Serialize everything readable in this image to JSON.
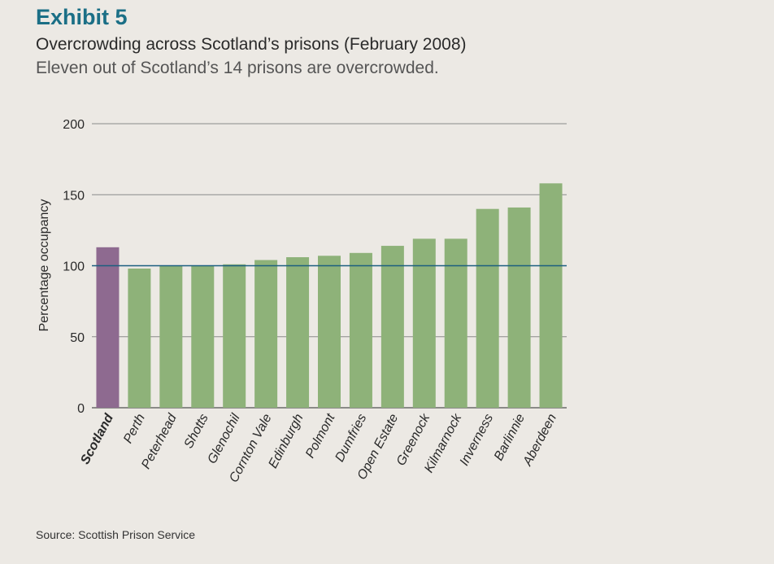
{
  "header": {
    "exhibit": "Exhibit 5",
    "title": "Overcrowding across Scotland’s prisons (February 2008)",
    "subtitle": "Eleven out of Scotland’s 14 prisons are overcrowded."
  },
  "footer": {
    "source": "Source: Scottish Prison Service"
  },
  "chart_data": {
    "type": "bar",
    "categories": [
      "Scotland",
      "Perth",
      "Peterhead",
      "Shotts",
      "Glenochil",
      "Cornton Vale",
      "Edinburgh",
      "Polmont",
      "Dumfries",
      "Open Estate",
      "Greenock",
      "Kilmarnock",
      "Inverness",
      "Barlinnie",
      "Aberdeen"
    ],
    "values": [
      113,
      98,
      100,
      100,
      101,
      104,
      106,
      107,
      109,
      114,
      119,
      119,
      140,
      141,
      158
    ],
    "highlight_category": "Scotland",
    "xlabel": "",
    "ylabel": "Percentage occupancy",
    "ylim": [
      0,
      200
    ],
    "yticks": [
      0,
      50,
      100,
      150,
      200
    ],
    "reference_line": 100,
    "grid": true,
    "colors": {
      "bar": "#8eb279",
      "highlight_bar": "#8e6a90",
      "reference_line": "#1b5f80",
      "grid": "#8a8a8a",
      "title": "#1b6f86"
    }
  }
}
